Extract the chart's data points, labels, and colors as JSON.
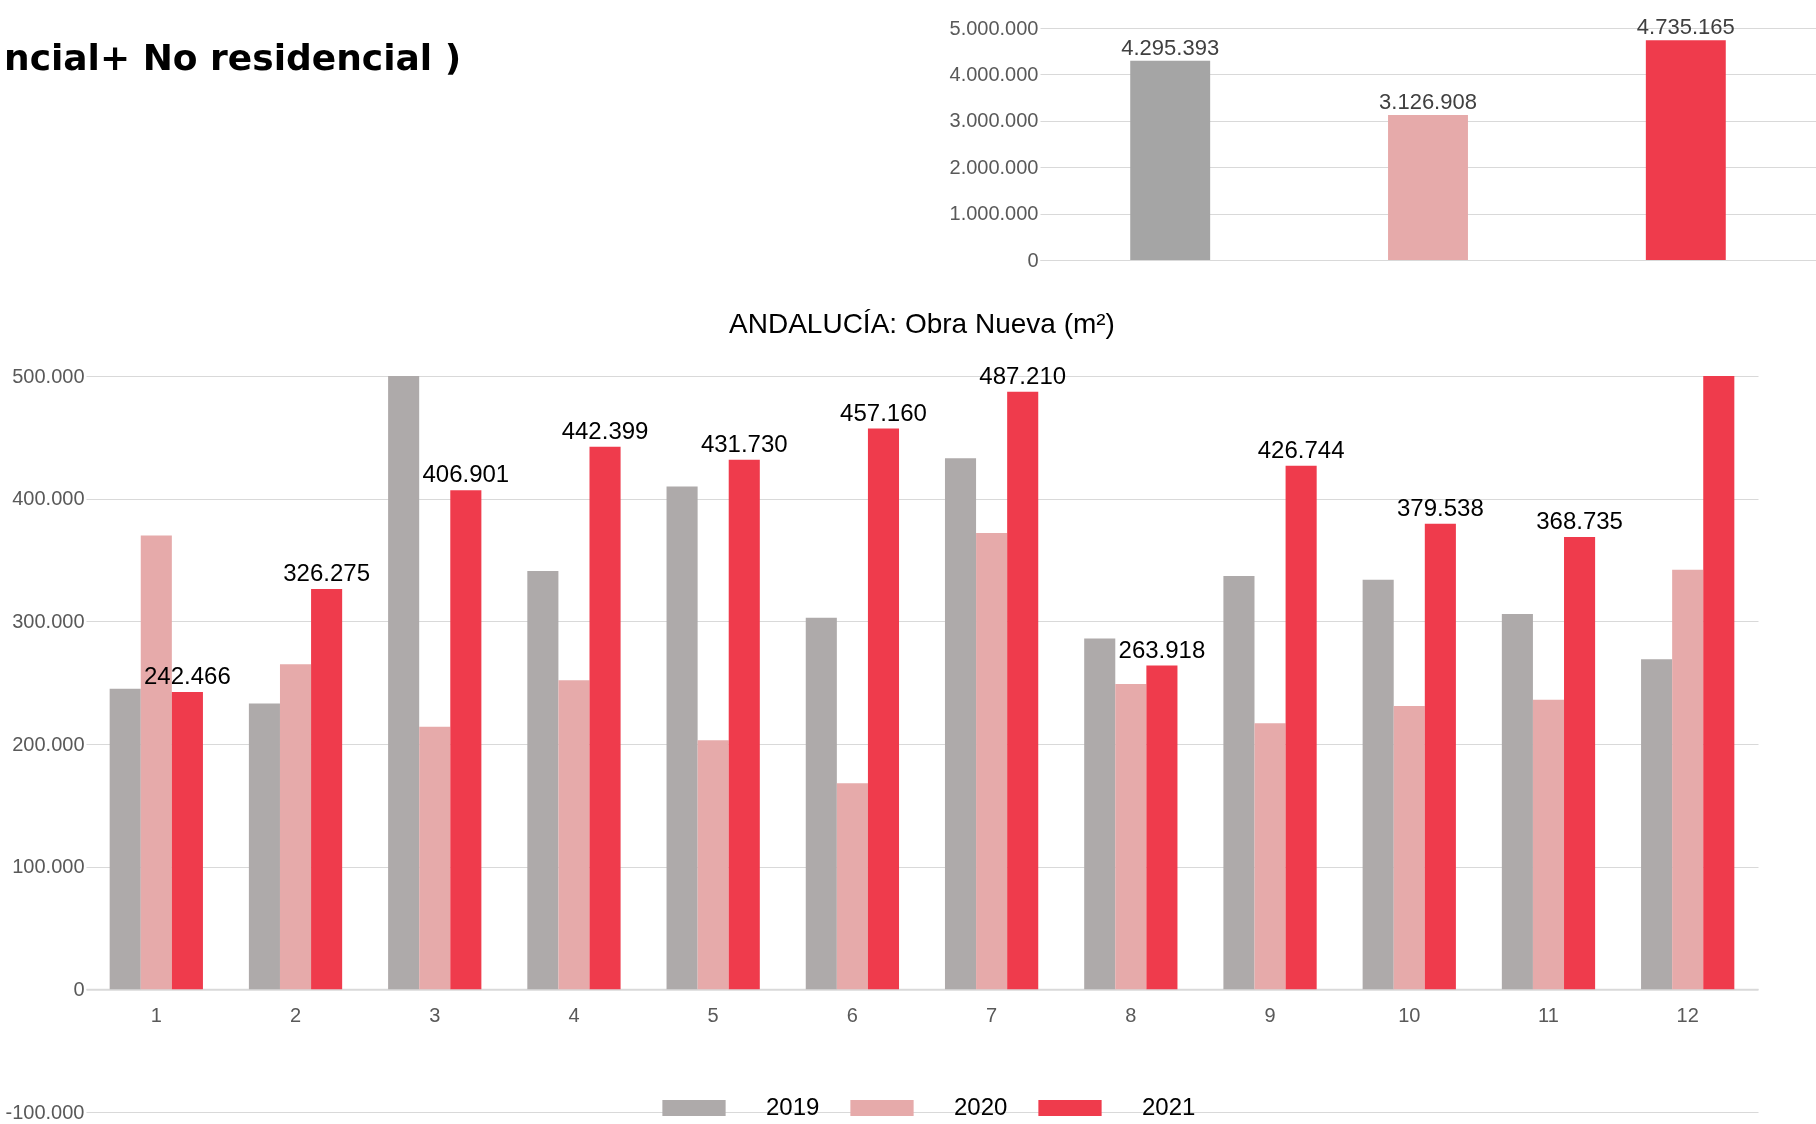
{
  "chart_data": [
    {
      "type": "bar",
      "annotations": [
        "ncial+ No residencial )"
      ],
      "categories": [
        null,
        null,
        null
      ],
      "values": [
        4295393,
        3126908,
        4735165
      ],
      "colors": [
        "#a5a5a5",
        "#e6aaaa",
        "#ef3b4c"
      ],
      "value_labels": [
        "4.295.393",
        "3.126.908",
        "4.735.165"
      ],
      "ylim": [
        0,
        5000000
      ],
      "yticks": [
        {
          "value": 0,
          "label": "0"
        },
        {
          "value": 1000000,
          "label": "1.000.000"
        },
        {
          "value": 2000000,
          "label": "2.000.000"
        },
        {
          "value": 3000000,
          "label": "3.000.000"
        },
        {
          "value": 4000000,
          "label": "4.000.000"
        },
        {
          "value": 5000000,
          "label": "5.000.000"
        }
      ],
      "grid": "y"
    },
    {
      "type": "bar",
      "title": "ANDALUCÍA: Obra Nueva (m²)",
      "categories": [
        "1",
        "2",
        "3",
        "4",
        "5",
        "6",
        "7",
        "8",
        "9",
        "10",
        "11",
        "12"
      ],
      "series": [
        {
          "name": "2019",
          "color": "#aeaaaa",
          "values": [
            245000,
            233000,
            500000,
            341000,
            410000,
            303000,
            433000,
            286000,
            337000,
            334000,
            306000,
            269000
          ]
        },
        {
          "name": "2020",
          "color": "#e6aaaa",
          "values": [
            370000,
            265000,
            214000,
            252000,
            203000,
            168000,
            372000,
            249000,
            217000,
            231000,
            236000,
            342000
          ]
        },
        {
          "name": "2021",
          "color": "#ef3b4c",
          "values": [
            242466,
            326275,
            406901,
            442399,
            431730,
            457160,
            487210,
            263918,
            426744,
            379538,
            368735,
            500000
          ],
          "value_labels": [
            "242.466",
            "326.275",
            "406.901",
            "442.399",
            "431.730",
            "457.160",
            "487.210",
            "263.918",
            "426.744",
            "379.538",
            "368.735",
            null
          ]
        }
      ],
      "ylim": [
        -100000,
        500000
      ],
      "yticks": [
        {
          "value": -100000,
          "label": "-100.000"
        },
        {
          "value": 0,
          "label": "0"
        },
        {
          "value": 100000,
          "label": "100.000"
        },
        {
          "value": 200000,
          "label": "200.000"
        },
        {
          "value": 300000,
          "label": "300.000"
        },
        {
          "value": 400000,
          "label": "400.000"
        },
        {
          "value": 500000,
          "label": "500.000"
        }
      ],
      "grid": "y",
      "legend": "bottom"
    }
  ]
}
